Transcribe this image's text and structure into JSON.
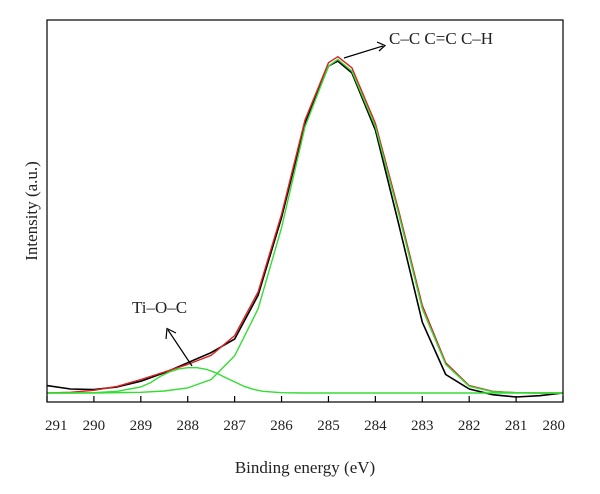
{
  "chart_data": {
    "type": "line",
    "title": "",
    "xlabel": "Binding energy (eV)",
    "ylabel": "Intensity (a.u.)",
    "xlim": [
      291,
      280
    ],
    "x_reversed": true,
    "ylim": [
      0,
      1.05
    ],
    "y_ticks_shown": false,
    "grid": false,
    "legend": "none",
    "x_ticks": [
      291,
      290,
      289,
      288,
      287,
      286,
      285,
      284,
      283,
      282,
      281,
      280
    ],
    "series": [
      {
        "color": "#000000",
        "x": [
          291.0,
          290.5,
          290.0,
          289.5,
          289.0,
          288.5,
          288.0,
          287.5,
          287.0,
          286.5,
          286.0,
          285.5,
          285.0,
          284.8,
          284.5,
          284.0,
          283.5,
          283.0,
          282.5,
          282.0,
          281.5,
          281.0,
          280.5,
          280.0
        ],
        "y": [
          0.022,
          0.012,
          0.01,
          0.018,
          0.035,
          0.06,
          0.09,
          0.12,
          0.16,
          0.29,
          0.52,
          0.8,
          0.97,
          0.985,
          0.95,
          0.78,
          0.5,
          0.21,
          0.055,
          0.012,
          -0.005,
          -0.012,
          -0.008,
          0.0
        ]
      },
      {
        "color": "#dd2222",
        "x": [
          291.0,
          290.5,
          290.0,
          289.5,
          289.0,
          288.5,
          288.0,
          287.5,
          287.0,
          286.5,
          286.0,
          285.5,
          285.0,
          284.8,
          284.5,
          284.0,
          283.5,
          283.0,
          282.5,
          282.0,
          281.5,
          281.0,
          280.5,
          280.0
        ],
        "y": [
          0.0,
          0.002,
          0.008,
          0.02,
          0.04,
          0.062,
          0.085,
          0.112,
          0.17,
          0.3,
          0.53,
          0.81,
          0.98,
          0.998,
          0.965,
          0.8,
          0.54,
          0.26,
          0.09,
          0.022,
          0.005,
          0.001,
          0.0,
          0.0
        ]
      },
      {
        "color": "#33dd33",
        "x": [
          291.0,
          290.5,
          290.0,
          289.5,
          289.0,
          288.8,
          288.6,
          288.4,
          288.2,
          288.0,
          287.8,
          287.6,
          287.4,
          287.2,
          287.0,
          286.8,
          286.6,
          286.4,
          286.0,
          285.5,
          285.0,
          284.0,
          283.0,
          282.0,
          281.0,
          280.0
        ],
        "y": [
          0.0,
          0.0,
          0.001,
          0.005,
          0.018,
          0.03,
          0.048,
          0.062,
          0.071,
          0.075,
          0.075,
          0.07,
          0.06,
          0.046,
          0.033,
          0.02,
          0.011,
          0.005,
          0.001,
          0.0,
          0.0,
          0.0,
          0.0,
          0.0,
          0.0,
          0.0
        ]
      },
      {
        "color": "#33dd33",
        "x": [
          291.0,
          290.0,
          289.0,
          288.5,
          288.0,
          287.5,
          287.0,
          286.5,
          286.0,
          285.5,
          285.0,
          284.8,
          284.5,
          284.0,
          283.5,
          283.0,
          282.5,
          282.0,
          281.5,
          281.0,
          280.5,
          280.0
        ],
        "y": [
          0.0,
          0.0,
          0.002,
          0.006,
          0.015,
          0.04,
          0.11,
          0.25,
          0.49,
          0.79,
          0.97,
          0.99,
          0.955,
          0.79,
          0.53,
          0.25,
          0.085,
          0.02,
          0.004,
          0.001,
          0.0,
          0.0
        ]
      }
    ],
    "annotations": [
      {
        "text": "C–C C=C C–H",
        "x": 284.78,
        "y": 0.99
      },
      {
        "text": "Ti–O–C",
        "x": 287.85,
        "y": 0.07
      }
    ]
  }
}
